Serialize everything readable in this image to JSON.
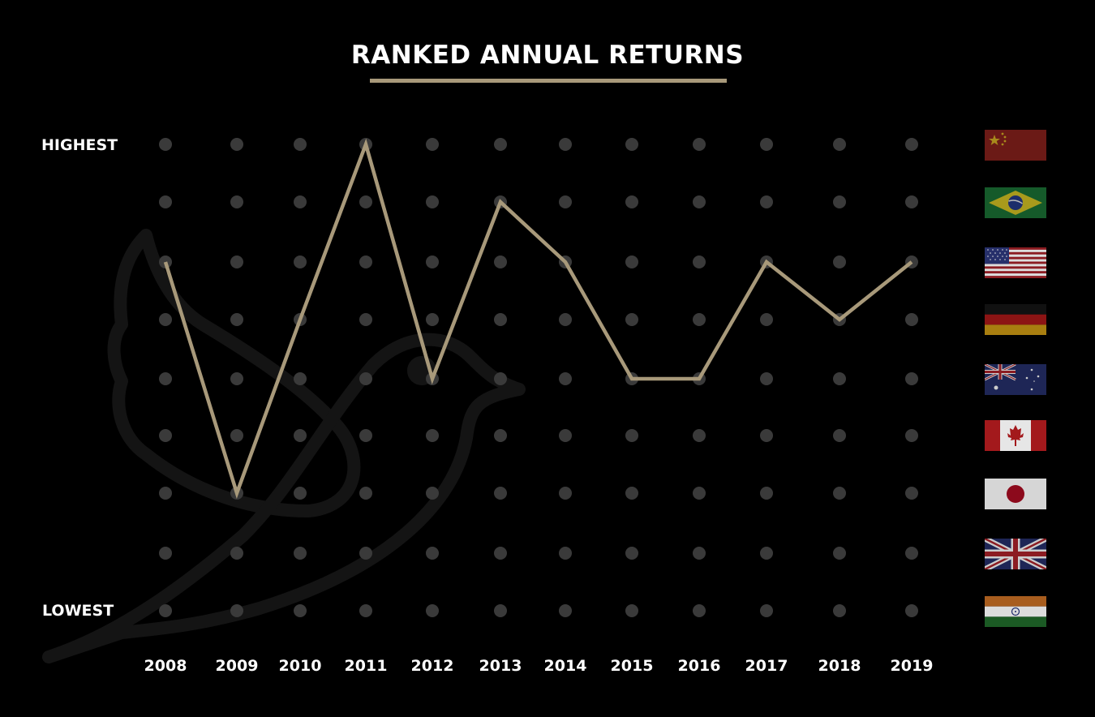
{
  "title": "RANKED ANNUAL RETURNS",
  "colors": {
    "background": "#000000",
    "accent": "#a8997a",
    "dot": "#3a3a3a",
    "text": "#ffffff"
  },
  "chart_data": {
    "type": "line",
    "title": "RANKED ANNUAL RETURNS",
    "x": [
      "2008",
      "2009",
      "2010",
      "2011",
      "2012",
      "2013",
      "2014",
      "2015",
      "2016",
      "2017",
      "2018",
      "2019"
    ],
    "series": [
      {
        "values": [
          3,
          7,
          4,
          1,
          5,
          2,
          3,
          5,
          5,
          3,
          4,
          3
        ]
      }
    ],
    "y_axis": {
      "top_label": "HIGHEST",
      "bottom_label": "LOWEST",
      "rank_min": 1,
      "rank_max": 9
    },
    "rank_labels": [
      "China",
      "Brazil",
      "United States",
      "Germany",
      "Australia",
      "Canada",
      "Japan",
      "United Kingdom",
      "India"
    ],
    "grid": "dot-matrix"
  },
  "flags": [
    "china-flag",
    "brazil-flag",
    "usa-flag",
    "germany-flag",
    "australia-flag",
    "canada-flag",
    "japan-flag",
    "uk-flag",
    "india-flag"
  ]
}
